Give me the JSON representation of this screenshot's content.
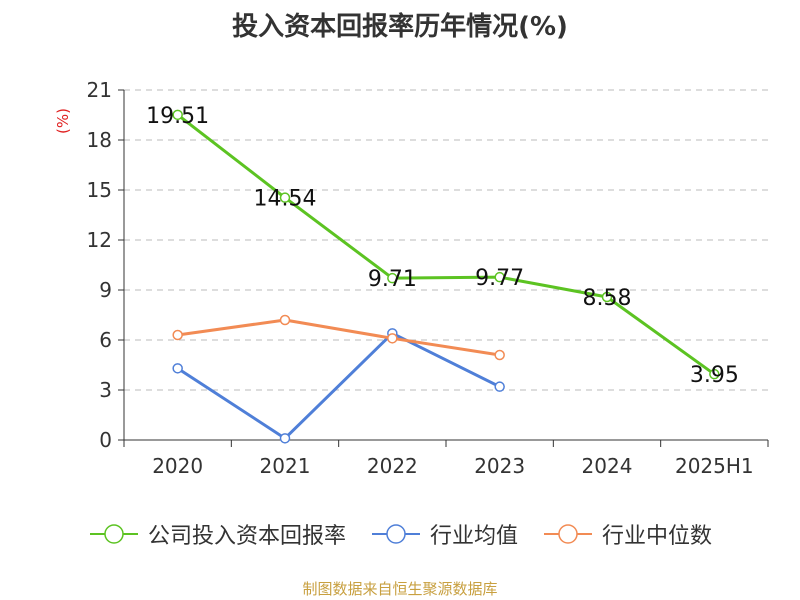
{
  "chart_data": {
    "type": "line",
    "title": "投入资本回报率历年情况(%)",
    "ylabel": "(%)",
    "xlabel": "",
    "categories": [
      "2020",
      "2021",
      "2022",
      "2023",
      "2024",
      "2025H1"
    ],
    "ylim": [
      0,
      21
    ],
    "yticks": [
      0,
      3,
      6,
      9,
      12,
      15,
      18,
      21
    ],
    "grid": true,
    "legend_position": "bottom",
    "series": [
      {
        "name": "公司投入资本回报率",
        "color": "#5cc322",
        "values": [
          19.51,
          14.54,
          9.71,
          9.77,
          8.58,
          3.95
        ],
        "labels": [
          "19.51",
          "14.54",
          "9.71",
          "9.77",
          "8.58",
          "3.95"
        ]
      },
      {
        "name": "行业均值",
        "color": "#4f7fd8",
        "values": [
          4.3,
          0.1,
          6.4,
          3.2,
          null,
          null
        ]
      },
      {
        "name": "行业中位数",
        "color": "#f28b54",
        "values": [
          6.3,
          7.2,
          6.1,
          5.1,
          null,
          null
        ]
      }
    ]
  },
  "source": "制图数据来自恒生聚源数据库"
}
